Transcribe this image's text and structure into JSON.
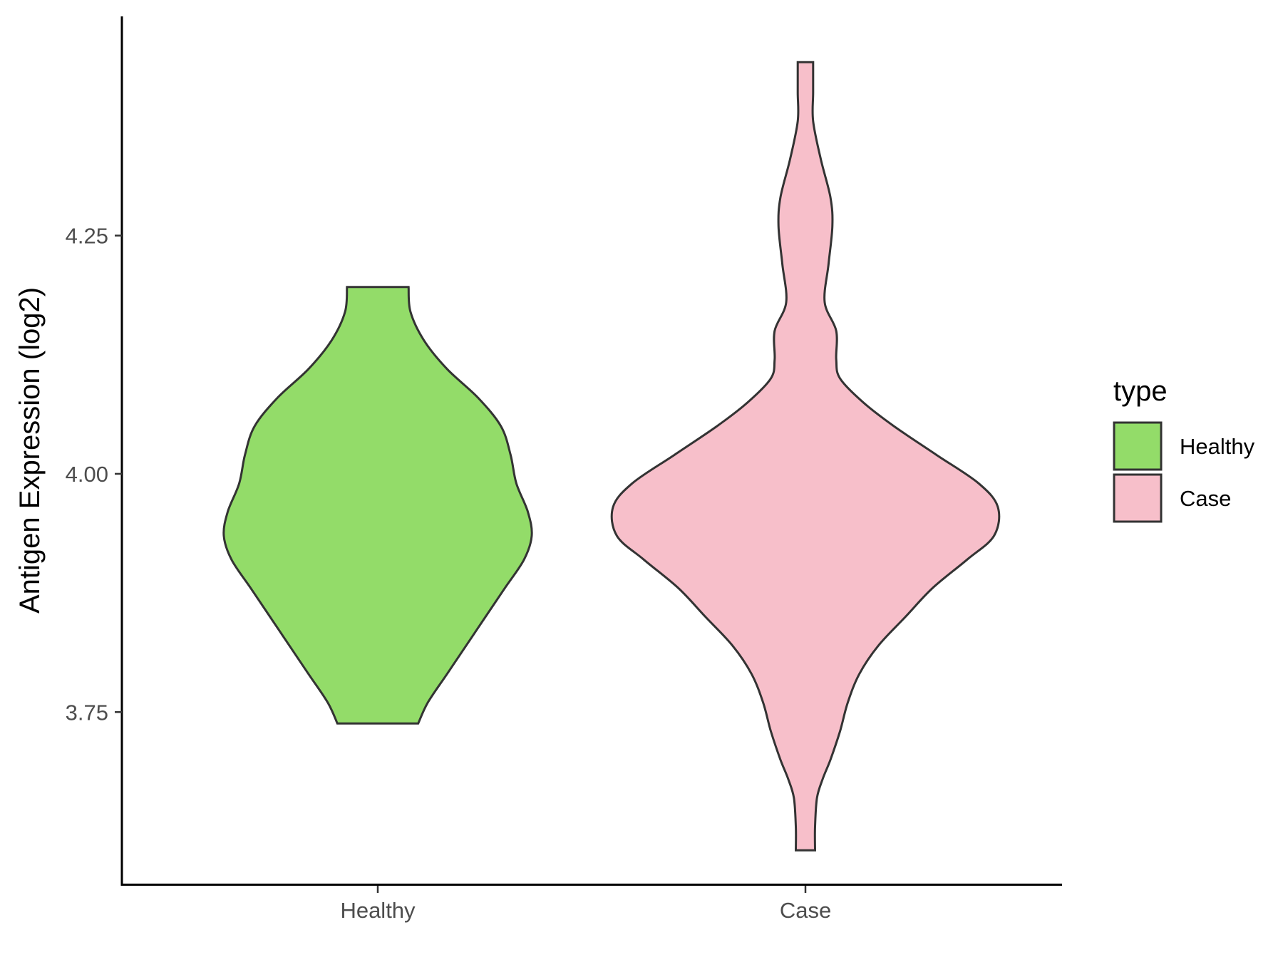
{
  "chart_data": {
    "type": "violin",
    "ylabel": "Antigen Expression (log2)",
    "xlabel": "",
    "categories": [
      "Healthy",
      "Case"
    ],
    "y_ticks": [
      3.75,
      4.0,
      4.25
    ],
    "y_tick_labels": [
      "3.75",
      "4.00",
      "4.25"
    ],
    "ylim": [
      3.57,
      4.48
    ],
    "grid": false,
    "legend": {
      "title": "type",
      "position": "right",
      "entries": [
        "Healthy",
        "Case"
      ]
    },
    "colors": {
      "Healthy": "#93dc69",
      "Case": "#f7bfca",
      "outline": "#333333"
    },
    "series": [
      {
        "category": "Healthy",
        "min": 3.738,
        "max": 4.196,
        "density": [
          [
            3.738,
            0.21
          ],
          [
            3.76,
            0.26
          ],
          [
            3.79,
            0.36
          ],
          [
            3.82,
            0.46
          ],
          [
            3.85,
            0.56
          ],
          [
            3.88,
            0.66
          ],
          [
            3.91,
            0.76
          ],
          [
            3.935,
            0.8
          ],
          [
            3.96,
            0.78
          ],
          [
            3.99,
            0.72
          ],
          [
            4.02,
            0.69
          ],
          [
            4.05,
            0.64
          ],
          [
            4.08,
            0.52
          ],
          [
            4.11,
            0.36
          ],
          [
            4.14,
            0.24
          ],
          [
            4.17,
            0.17
          ],
          [
            4.196,
            0.16
          ]
        ]
      },
      {
        "category": "Case",
        "min": 3.605,
        "max": 4.432,
        "density": [
          [
            3.605,
            0.05
          ],
          [
            3.63,
            0.05
          ],
          [
            3.66,
            0.06
          ],
          [
            3.68,
            0.09
          ],
          [
            3.7,
            0.13
          ],
          [
            3.73,
            0.18
          ],
          [
            3.76,
            0.22
          ],
          [
            3.79,
            0.28
          ],
          [
            3.82,
            0.38
          ],
          [
            3.85,
            0.52
          ],
          [
            3.88,
            0.66
          ],
          [
            3.91,
            0.84
          ],
          [
            3.935,
            0.98
          ],
          [
            3.965,
            1.0
          ],
          [
            3.99,
            0.9
          ],
          [
            4.02,
            0.68
          ],
          [
            4.05,
            0.46
          ],
          [
            4.075,
            0.3
          ],
          [
            4.1,
            0.18
          ],
          [
            4.12,
            0.16
          ],
          [
            4.15,
            0.16
          ],
          [
            4.18,
            0.1
          ],
          [
            4.22,
            0.12
          ],
          [
            4.26,
            0.14
          ],
          [
            4.29,
            0.13
          ],
          [
            4.33,
            0.08
          ],
          [
            4.37,
            0.04
          ],
          [
            4.4,
            0.04
          ],
          [
            4.432,
            0.04
          ]
        ]
      }
    ]
  }
}
